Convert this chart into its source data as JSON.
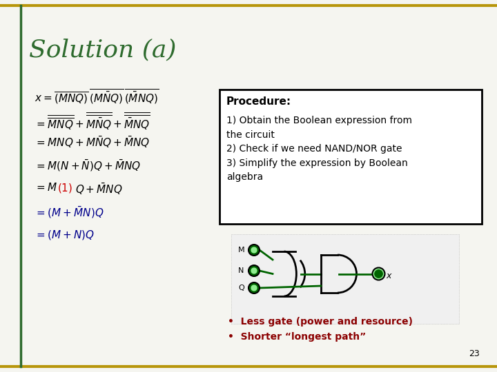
{
  "title": "Solution (a)",
  "title_color": "#2E6B2E",
  "background_color": "#F5F5F0",
  "border_color": "#B8960C",
  "page_number": "23",
  "procedure_title": "Procedure:",
  "procedure_steps": [
    "1) Obtain the Boolean expression from\nthe circuit",
    "2) Check if we need NAND/NOR gate",
    "3) Simplify the expression by Boolean\nalgebra"
  ],
  "bullets": [
    "Less gate (power and resource)",
    "Shorter “longest path”"
  ],
  "bullet_color": "#8B0000",
  "gate_color": "#006400",
  "eq_color_black": "#000000",
  "eq_color_blue": "#00008B",
  "eq_color_red": "#CC0000"
}
